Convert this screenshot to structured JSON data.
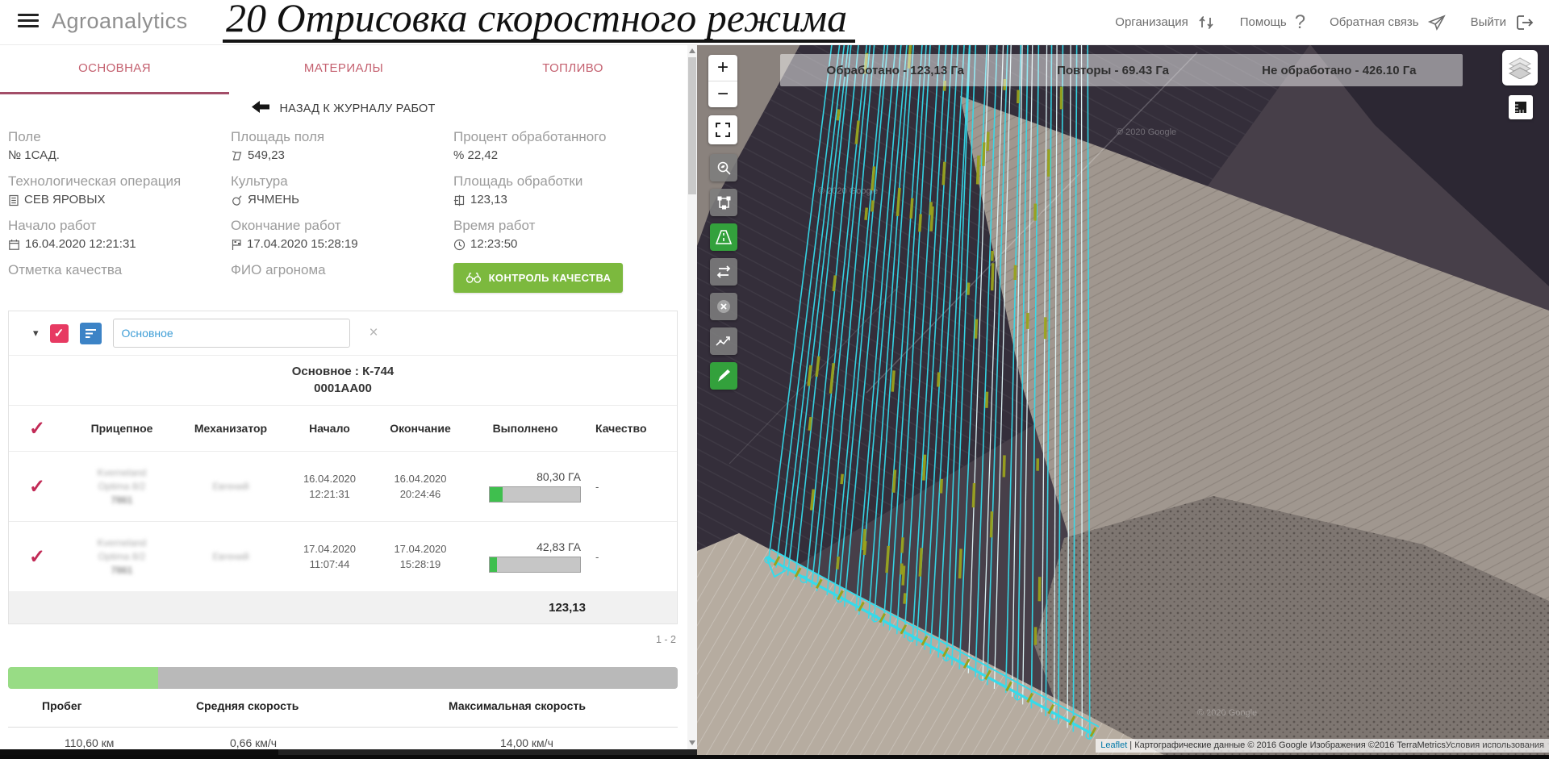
{
  "header": {
    "app_title": "Agroanalytics",
    "page_title": "20 Отрисовка скоростного режима",
    "nav": {
      "organization": "Организация",
      "help": "Помощь",
      "help_icon": "?",
      "feedback": "Обратная связь",
      "logout": "Выйти"
    }
  },
  "panel": {
    "tabs": [
      {
        "label": "ОСНОВНАЯ"
      },
      {
        "label": "МАТЕРИАЛЫ"
      },
      {
        "label": "ТОПЛИВО"
      }
    ],
    "back_link": "НАЗАД К ЖУРНАЛУ РАБОТ",
    "info": [
      {
        "label": "Поле",
        "value": "№ 1САД."
      },
      {
        "label": "Площадь поля",
        "value": "549,23"
      },
      {
        "label": "Процент обработанного",
        "value": "% 22,42"
      },
      {
        "label": "Технологическая операция",
        "value": "СЕВ ЯРОВЫХ"
      },
      {
        "label": "Культура",
        "value": "ЯЧМЕНЬ"
      },
      {
        "label": "Площадь обработки",
        "value": "123,13"
      },
      {
        "label": "Начало работ",
        "value": "16.04.2020 12:21:31"
      },
      {
        "label": "Окончание работ",
        "value": "17.04.2020 15:28:19"
      },
      {
        "label": "Время работ",
        "value": "12:23:50"
      },
      {
        "label": "Отметка качества",
        "value": ""
      },
      {
        "label": "ФИО агронома",
        "value": ""
      }
    ],
    "quality_button": "КОНТРОЛЬ КАЧЕСТВА",
    "machine": {
      "caret_icon": "▾",
      "check_icon": "✓",
      "clear_icon": "×",
      "filter_value": "Основное",
      "title": "Основное : К-744",
      "subtitle": "0001АА00",
      "columns": [
        "Прицепное",
        "Механизатор",
        "Начало",
        "Окончание",
        "Выполнено",
        "Качество"
      ],
      "rows": [
        {
          "implement_1": "Kverneland",
          "implement_2": "Optima 8/2",
          "implement_3": "7861",
          "operator": "Евгений",
          "start_date": "16.04.2020",
          "start_time": "12:21:31",
          "end_date": "16.04.2020",
          "end_time": "20:24:46",
          "done": "80,30 ГА",
          "done_pct": 14.6,
          "quality": "-"
        },
        {
          "implement_1": "Kverneland",
          "implement_2": "Optima 8/2",
          "implement_3": "7861",
          "operator": "Евгений",
          "start_date": "17.04.2020",
          "start_time": "11:07:44",
          "end_date": "17.04.2020",
          "end_time": "15:28:19",
          "done": "42,83 ГА",
          "done_pct": 7.8,
          "quality": "-"
        }
      ],
      "total": "123,13",
      "pagination": "1 - 2"
    },
    "speed": {
      "progress_pct": 22.4,
      "columns": [
        "Пробег",
        "Средняя скорость",
        "Максимальная скорость"
      ],
      "values": [
        "110,60 км",
        "0,66 км/ч",
        "14,00 км/ч"
      ]
    }
  },
  "map": {
    "stats": [
      {
        "label": "Обработано - 123,13 Га"
      },
      {
        "label": "Повторы - 69.43 Га"
      },
      {
        "label": "Не обработано - 426.10 Га"
      }
    ],
    "zoom_in": "+",
    "zoom_out": "−",
    "watermark": "© 2020 Google",
    "colors": {
      "track": "#35dbeb",
      "repeat_light": "#e2fbfd",
      "olive": "#9aa21c"
    },
    "attribution": {
      "leaflet": "Leaflet",
      "sep": " | ",
      "text": "Картографические данные © 2016 Google Изображения ©2016 TerraMetrics",
      "terms": "Условия использования"
    }
  }
}
